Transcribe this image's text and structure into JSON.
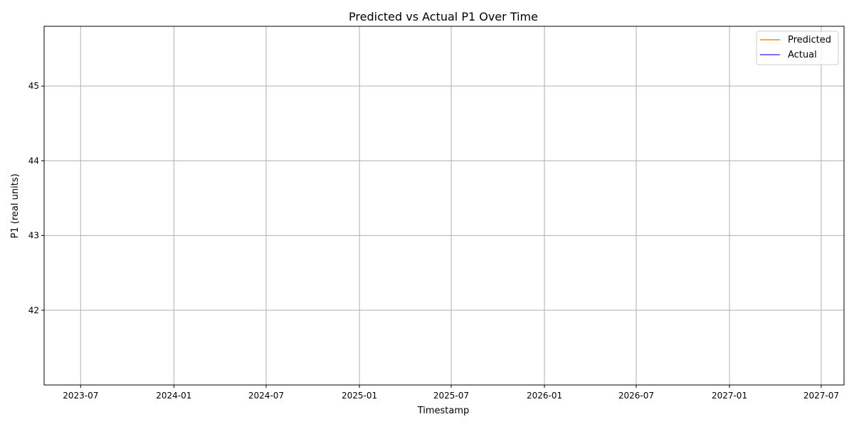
{
  "chart_data": {
    "type": "line",
    "title": "Predicted vs Actual P1 Over Time",
    "xlabel": "Timestamp",
    "ylabel": "P1 (real units)",
    "x_axis_type": "date",
    "x_ticks": [
      "2023-07",
      "2024-01",
      "2024-07",
      "2025-01",
      "2025-07",
      "2026-01",
      "2026-07",
      "2027-01",
      "2027-07"
    ],
    "xlim": [
      "2023-04-20",
      "2027-08-15"
    ],
    "y_ticks": [
      42,
      43,
      44,
      45
    ],
    "ylim": [
      41.0,
      45.8
    ],
    "grid": true,
    "legend_position": "top-right",
    "series": [
      {
        "name": "Predicted",
        "color": "#ff8c00",
        "x": [],
        "y": []
      },
      {
        "name": "Actual",
        "color": "#4444ff",
        "x": [],
        "y": []
      }
    ]
  }
}
